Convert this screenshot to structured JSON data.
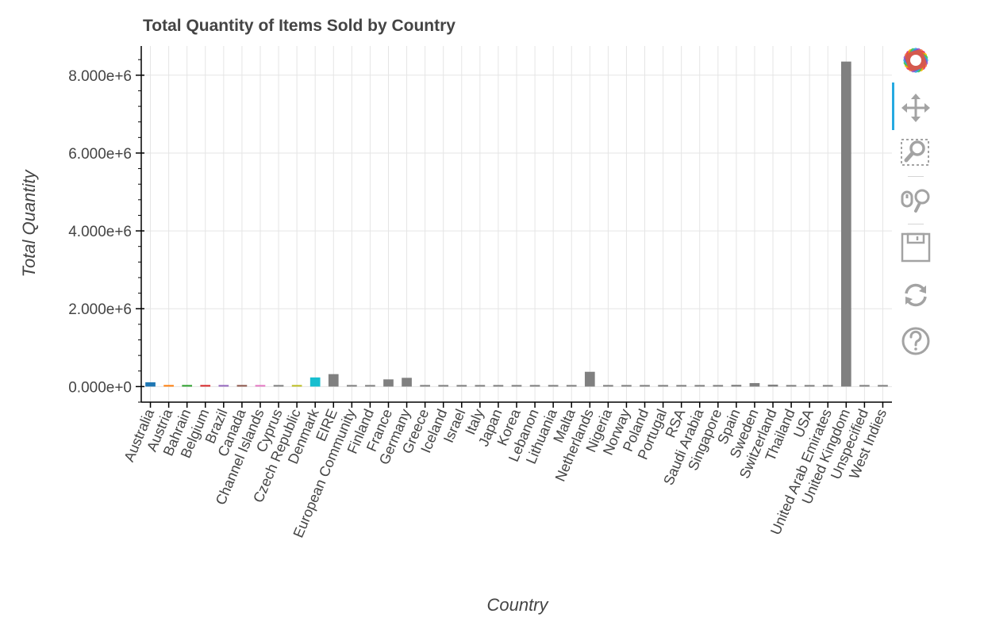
{
  "chart_data": {
    "type": "bar",
    "title": "Total Quantity of Items Sold by Country",
    "xlabel": "Country",
    "ylabel": "Total Quantity",
    "ylim": [
      -400000,
      8750000
    ],
    "yticks": [
      0,
      2000000,
      4000000,
      6000000,
      8000000
    ],
    "ytick_labels": [
      "0.000e+0",
      "2.000e+6",
      "4.000e+6",
      "6.000e+6",
      "8.000e+6"
    ],
    "grid": true,
    "categories": [
      "Australia",
      "Austria",
      "Bahrain",
      "Belgium",
      "Brazil",
      "Canada",
      "Channel Islands",
      "Cyprus",
      "Czech Republic",
      "Denmark",
      "EIRE",
      "European Community",
      "Finland",
      "France",
      "Germany",
      "Greece",
      "Iceland",
      "Israel",
      "Italy",
      "Japan",
      "Korea",
      "Lebanon",
      "Lithuania",
      "Malta",
      "Netherlands",
      "Nigeria",
      "Norway",
      "Poland",
      "Portugal",
      "RSA",
      "Saudi Arabia",
      "Singapore",
      "Spain",
      "Sweden",
      "Switzerland",
      "Thailand",
      "USA",
      "United Arab Emirates",
      "United Kingdom",
      "Unspecified",
      "West Indies"
    ],
    "values": [
      110000,
      12000,
      6000,
      40000,
      5000,
      8000,
      15000,
      13000,
      2000,
      235000,
      320000,
      500,
      15000,
      185000,
      225000,
      14000,
      2500,
      4500,
      14000,
      40000,
      5000,
      1000,
      3000,
      5000,
      380000,
      1500,
      20000,
      8000,
      25000,
      2000,
      2500,
      15000,
      45000,
      90000,
      50000,
      1800,
      3000,
      3000,
      8350000,
      3500,
      100
    ],
    "colors": [
      "#1f77b4",
      "#ff7f0e",
      "#2ca02c",
      "#d62728",
      "#9467bd",
      "#8c564b",
      "#e377c2",
      "#7f7f7f",
      "#bcbd22",
      "#17becf",
      "#808080",
      "#808080",
      "#808080",
      "#808080",
      "#808080",
      "#808080",
      "#808080",
      "#808080",
      "#808080",
      "#808080",
      "#808080",
      "#808080",
      "#808080",
      "#808080",
      "#808080",
      "#808080",
      "#808080",
      "#808080",
      "#808080",
      "#808080",
      "#808080",
      "#808080",
      "#808080",
      "#808080",
      "#808080",
      "#808080",
      "#808080",
      "#808080",
      "#808080",
      "#808080",
      "#808080"
    ],
    "label_color": "#444444",
    "grid_color": "#e5e5e5",
    "axis_color": "#000000"
  },
  "toolbar": {
    "tools": [
      {
        "name": "bokeh-logo-icon"
      },
      {
        "name": "pan-tool-icon"
      },
      {
        "name": "box-zoom-tool-icon"
      },
      {
        "name": "wheel-zoom-tool-icon"
      },
      {
        "name": "save-tool-icon"
      },
      {
        "name": "reset-tool-icon"
      },
      {
        "name": "help-tool-icon"
      }
    ],
    "active_color": "#26aae1",
    "icon_color": "#a3a3a3"
  }
}
